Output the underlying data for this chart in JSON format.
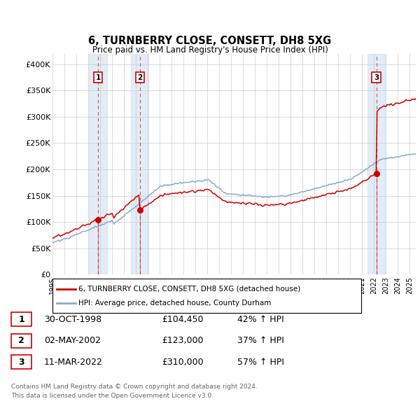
{
  "title": "6, TURNBERRY CLOSE, CONSETT, DH8 5XG",
  "subtitle": "Price paid vs. HM Land Registry's House Price Index (HPI)",
  "legend_line1": "6, TURNBERRY CLOSE, CONSETT, DH8 5XG (detached house)",
  "legend_line2": "HPI: Average price, detached house, County Durham",
  "sale_color": "#cc0000",
  "hpi_color": "#88aacc",
  "ylim": [
    0,
    420000
  ],
  "yticks": [
    0,
    50000,
    100000,
    150000,
    200000,
    250000,
    300000,
    350000,
    400000
  ],
  "ytick_labels": [
    "£0",
    "£50K",
    "£100K",
    "£150K",
    "£200K",
    "£250K",
    "£300K",
    "£350K",
    "£400K"
  ],
  "sales": [
    {
      "date_num": 1998.83,
      "price": 104450,
      "label": "1",
      "date_str": "30-OCT-1998",
      "price_str": "£104,450",
      "hpi_str": "42% ↑ HPI"
    },
    {
      "date_num": 2002.33,
      "price": 123000,
      "label": "2",
      "date_str": "02-MAY-2002",
      "price_str": "£123,000",
      "hpi_str": "37% ↑ HPI"
    },
    {
      "date_num": 2022.19,
      "price": 310000,
      "label": "3",
      "date_str": "11-MAR-2022",
      "price_str": "£310,000",
      "hpi_str": "57% ↑ HPI"
    }
  ],
  "footer_line1": "Contains HM Land Registry data © Crown copyright and database right 2024.",
  "footer_line2": "This data is licensed under the Open Government Licence v3.0.",
  "xmin": 1995.0,
  "xmax": 2025.5,
  "band_color": "#d0e0f0",
  "band_alpha": 0.6
}
